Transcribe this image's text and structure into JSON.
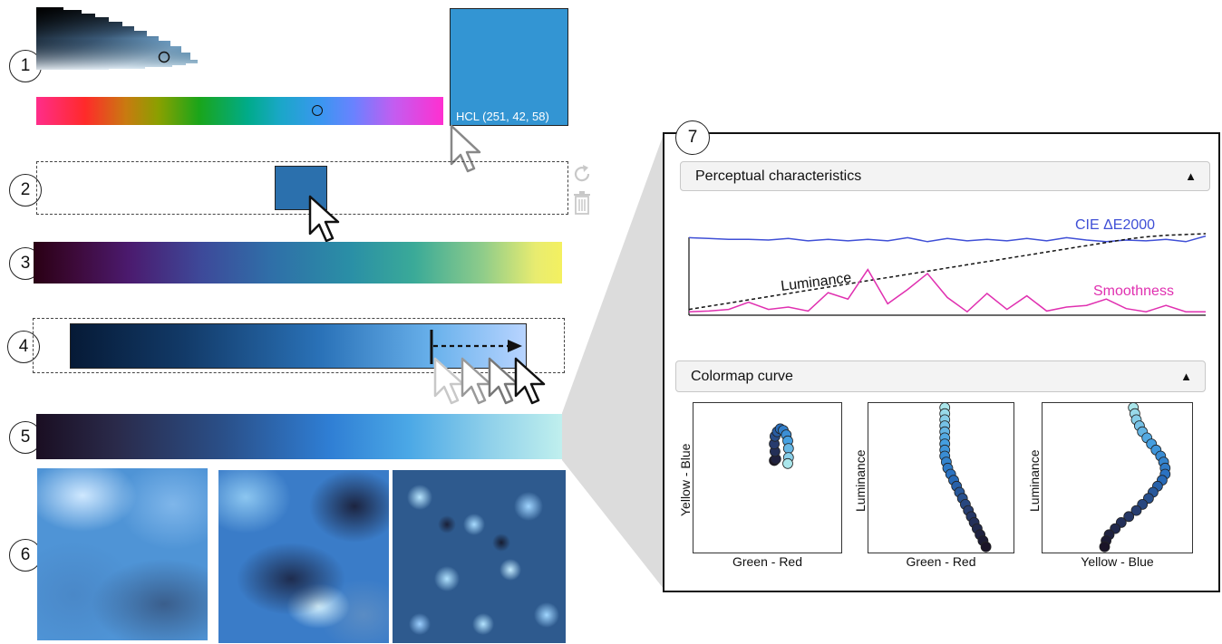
{
  "steps": [
    "1",
    "2",
    "3",
    "4",
    "5",
    "6",
    "7"
  ],
  "picker": {
    "swatch_color": "#3395d3",
    "swatch_label": "HCL (251, 42, 58)",
    "hue_position_fraction": 0.69
  },
  "palette": {
    "selected_color": "#2b70ad",
    "refresh_icon": "refresh-icon",
    "trash_icon": "trash-icon"
  },
  "panel": {
    "section1_title": "Perceptual characteristics",
    "section1_toggle": "▲",
    "series_labels": {
      "delta_e": "CIE ΔE2000",
      "luminance": "Luminance",
      "smoothness": "Smoothness"
    },
    "section2_title": "Colormap curve",
    "section2_toggle": "▲",
    "plots": [
      {
        "xlabel": "Green - Red",
        "ylabel": "Yellow - Blue"
      },
      {
        "xlabel": "Green - Red",
        "ylabel": "Luminance"
      },
      {
        "xlabel": "Yellow - Blue",
        "ylabel": "Luminance"
      }
    ]
  },
  "chart_data": {
    "type": "line",
    "series": [
      {
        "name": "CIE ΔE2000",
        "color": "#3f4fd6",
        "values": [
          0.95,
          0.94,
          0.93,
          0.93,
          0.92,
          0.94,
          0.91,
          0.93,
          0.91,
          0.93,
          0.91,
          0.95,
          0.9,
          0.94,
          0.91,
          0.93,
          0.91,
          0.94,
          0.91,
          0.95,
          0.92,
          0.9,
          0.92,
          0.91,
          0.93,
          0.9,
          0.97
        ]
      },
      {
        "name": "Luminance",
        "color": "#111111",
        "values": [
          0.05,
          0.09,
          0.13,
          0.17,
          0.21,
          0.25,
          0.29,
          0.33,
          0.37,
          0.41,
          0.45,
          0.49,
          0.53,
          0.57,
          0.61,
          0.65,
          0.69,
          0.73,
          0.77,
          0.81,
          0.85,
          0.89,
          0.93,
          0.96,
          0.98,
          0.99,
          1.0
        ]
      },
      {
        "name": "Smoothness",
        "color": "#e030b0",
        "values": [
          0.02,
          0.03,
          0.05,
          0.14,
          0.05,
          0.08,
          0.03,
          0.26,
          0.18,
          0.55,
          0.12,
          0.3,
          0.5,
          0.2,
          0.02,
          0.25,
          0.05,
          0.22,
          0.03,
          0.08,
          0.1,
          0.18,
          0.06,
          0.02,
          0.1,
          0.02,
          0.02
        ]
      }
    ],
    "ylim": [
      0,
      1
    ]
  },
  "curves": {
    "plot1": [
      [
        0.54,
        0.62
      ],
      [
        0.55,
        0.63
      ],
      [
        0.545,
        0.68
      ],
      [
        0.54,
        0.73
      ],
      [
        0.545,
        0.78
      ],
      [
        0.56,
        0.81
      ],
      [
        0.58,
        0.83
      ],
      [
        0.6,
        0.82
      ],
      [
        0.62,
        0.79
      ],
      [
        0.63,
        0.75
      ],
      [
        0.635,
        0.7
      ],
      [
        0.635,
        0.64
      ],
      [
        0.63,
        0.6
      ]
    ],
    "plot2": [
      [
        0.52,
        0.97
      ],
      [
        0.52,
        0.93
      ],
      [
        0.52,
        0.89
      ],
      [
        0.52,
        0.85
      ],
      [
        0.52,
        0.81
      ],
      [
        0.52,
        0.77
      ],
      [
        0.52,
        0.73
      ],
      [
        0.52,
        0.69
      ],
      [
        0.52,
        0.65
      ],
      [
        0.53,
        0.61
      ],
      [
        0.54,
        0.57
      ],
      [
        0.56,
        0.53
      ],
      [
        0.58,
        0.49
      ],
      [
        0.6,
        0.45
      ],
      [
        0.62,
        0.41
      ],
      [
        0.64,
        0.37
      ],
      [
        0.66,
        0.33
      ],
      [
        0.68,
        0.29
      ],
      [
        0.7,
        0.25
      ],
      [
        0.72,
        0.21
      ],
      [
        0.74,
        0.17
      ],
      [
        0.76,
        0.13
      ],
      [
        0.78,
        0.09
      ],
      [
        0.8,
        0.05
      ]
    ],
    "plot3": [
      [
        0.6,
        0.97
      ],
      [
        0.61,
        0.93
      ],
      [
        0.62,
        0.89
      ],
      [
        0.64,
        0.85
      ],
      [
        0.66,
        0.81
      ],
      [
        0.69,
        0.77
      ],
      [
        0.72,
        0.73
      ],
      [
        0.75,
        0.69
      ],
      [
        0.78,
        0.65
      ],
      [
        0.8,
        0.61
      ],
      [
        0.81,
        0.57
      ],
      [
        0.81,
        0.53
      ],
      [
        0.79,
        0.49
      ],
      [
        0.76,
        0.45
      ],
      [
        0.73,
        0.41
      ],
      [
        0.7,
        0.37
      ],
      [
        0.66,
        0.33
      ],
      [
        0.62,
        0.29
      ],
      [
        0.57,
        0.25
      ],
      [
        0.52,
        0.21
      ],
      [
        0.48,
        0.17
      ],
      [
        0.44,
        0.13
      ],
      [
        0.42,
        0.09
      ],
      [
        0.41,
        0.05
      ]
    ]
  }
}
